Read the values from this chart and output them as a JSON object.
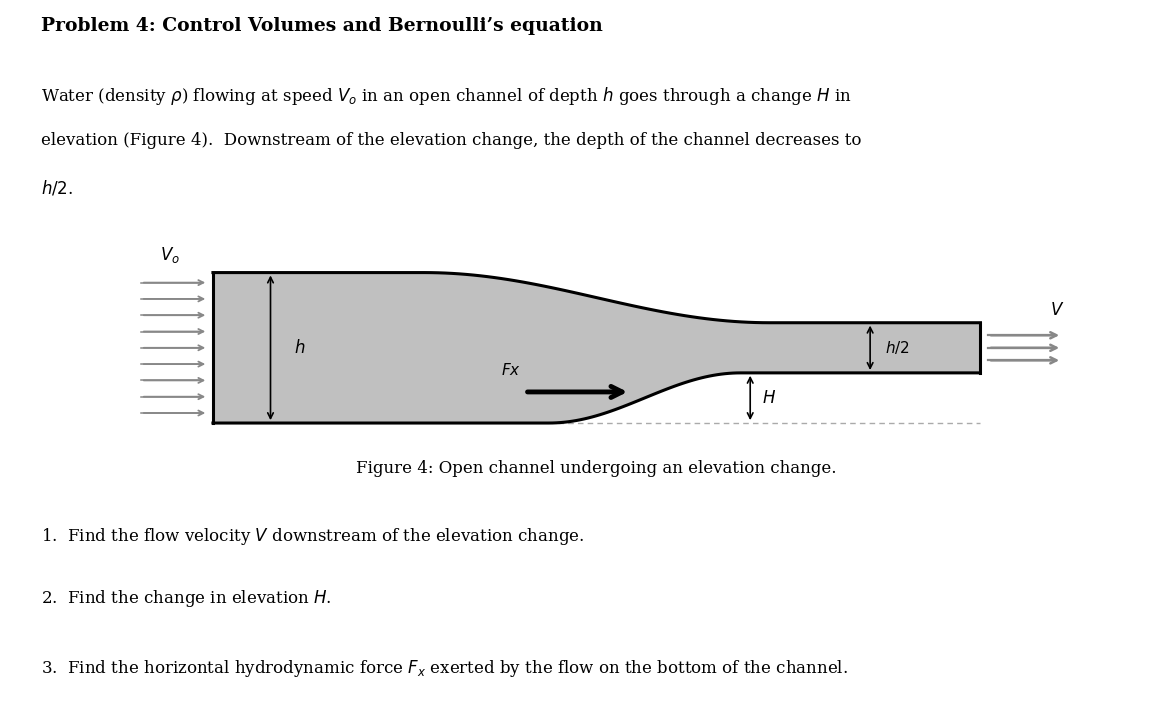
{
  "title": "Problem 4: Control Volumes and Bernoulli’s equation",
  "figure_caption": "Figure 4: Open channel undergoing an elevation change.",
  "channel_fill_color": "#c0c0c0",
  "channel_line_color": "#000000",
  "arrow_color": "#888888",
  "fx_arrow_color": "#000000",
  "dashed_line_color": "#aaaaaa",
  "bg_color": "#ffffff",
  "text_color": "#000000",
  "fig_width": 11.7,
  "fig_height": 7.08,
  "fig_dpi": 100
}
